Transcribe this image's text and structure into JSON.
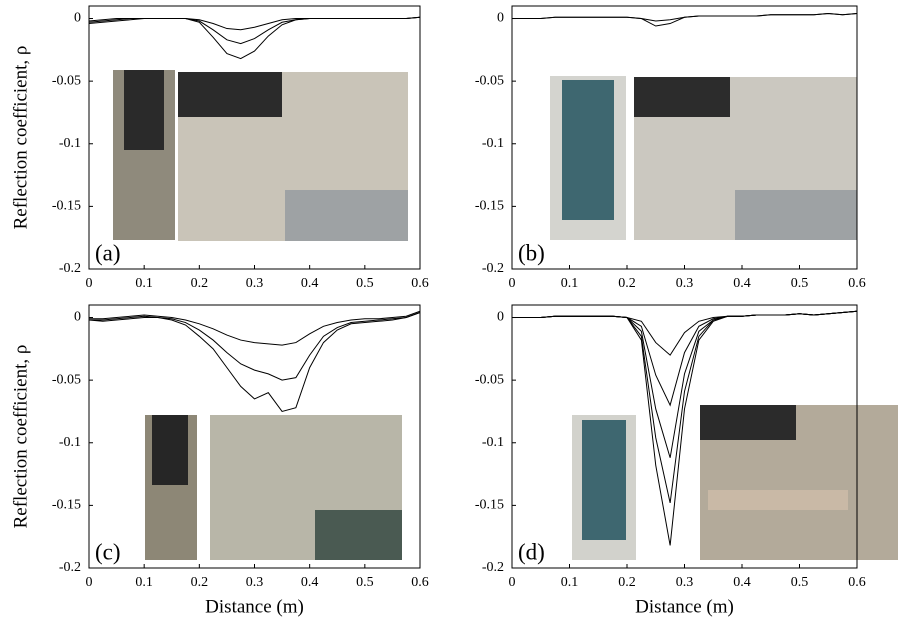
{
  "chart_data": [
    {
      "type": "line",
      "annotation": "(a)",
      "ylabel": "Reflection coefficient, ρ",
      "x": [
        0,
        0.025,
        0.05,
        0.075,
        0.1,
        0.125,
        0.15,
        0.175,
        0.2,
        0.225,
        0.25,
        0.275,
        0.3,
        0.325,
        0.35,
        0.375,
        0.4,
        0.425,
        0.45,
        0.475,
        0.5,
        0.525,
        0.55,
        0.575,
        0.6
      ],
      "series": [
        {
          "color": "#000000",
          "values": [
            -0.004,
            -0.003,
            -0.002,
            -0.001,
            0,
            0,
            0,
            0,
            -0.003,
            -0.015,
            -0.028,
            -0.032,
            -0.026,
            -0.014,
            -0.005,
            -0.001,
            0,
            0,
            0,
            0,
            0,
            0,
            0,
            0,
            0.001
          ]
        },
        {
          "color": "#000000",
          "values": [
            -0.003,
            -0.002,
            -0.001,
            0,
            0,
            0,
            0,
            0,
            -0.002,
            -0.009,
            -0.017,
            -0.02,
            -0.016,
            -0.009,
            -0.003,
            -0.001,
            0,
            0,
            0,
            0,
            0,
            0,
            0,
            0,
            0.001
          ]
        },
        {
          "color": "#000000",
          "values": [
            -0.002,
            -0.001,
            0,
            0,
            0,
            0,
            0,
            0,
            -0.001,
            -0.004,
            -0.008,
            -0.009,
            -0.007,
            -0.004,
            -0.001,
            0,
            0,
            0,
            0,
            0,
            0,
            0,
            0,
            0,
            0.001
          ]
        }
      ],
      "xlim": [
        0,
        0.6
      ],
      "ylim": [
        -0.2,
        0.01
      ],
      "xticks": [
        0,
        0.1,
        0.2,
        0.3,
        0.4,
        0.5,
        0.6
      ],
      "yticks": [
        0,
        -0.05,
        -0.1,
        -0.15,
        -0.2
      ]
    },
    {
      "type": "line",
      "annotation": "(b)",
      "x": [
        0,
        0.025,
        0.05,
        0.075,
        0.1,
        0.125,
        0.15,
        0.175,
        0.2,
        0.225,
        0.25,
        0.275,
        0.3,
        0.325,
        0.35,
        0.375,
        0.4,
        0.425,
        0.45,
        0.475,
        0.5,
        0.525,
        0.55,
        0.575,
        0.6
      ],
      "series": [
        {
          "color": "#000000",
          "values": [
            0,
            0,
            0,
            0.001,
            0.001,
            0.001,
            0.001,
            0.001,
            0.001,
            0,
            -0.006,
            -0.004,
            0.001,
            0.002,
            0.002,
            0.002,
            0.002,
            0.002,
            0.003,
            0.003,
            0.003,
            0.003,
            0.004,
            0.003,
            0.004
          ]
        },
        {
          "color": "#000000",
          "values": [
            0,
            0,
            0,
            0.001,
            0.001,
            0.001,
            0.001,
            0.001,
            0.001,
            0,
            -0.002,
            -0.001,
            0.001,
            0.002,
            0.002,
            0.002,
            0.002,
            0.002,
            0.003,
            0.003,
            0.003,
            0.003,
            0.004,
            0.003,
            0.004
          ]
        }
      ],
      "xlim": [
        0,
        0.6
      ],
      "ylim": [
        -0.2,
        0.01
      ],
      "xticks": [
        0,
        0.1,
        0.2,
        0.3,
        0.4,
        0.5,
        0.6
      ],
      "yticks": [
        0,
        -0.05,
        -0.1,
        -0.15,
        -0.2
      ]
    },
    {
      "type": "line",
      "annotation": "(c)",
      "ylabel": "Reflection coefficient, ρ",
      "xlabel": "Distance (m)",
      "x": [
        0,
        0.025,
        0.05,
        0.075,
        0.1,
        0.125,
        0.15,
        0.175,
        0.2,
        0.225,
        0.25,
        0.275,
        0.3,
        0.325,
        0.35,
        0.375,
        0.4,
        0.425,
        0.45,
        0.475,
        0.5,
        0.525,
        0.55,
        0.575,
        0.6
      ],
      "series": [
        {
          "color": "#000000",
          "values": [
            -0.002,
            -0.003,
            -0.002,
            -0.001,
            0,
            0,
            -0.002,
            -0.006,
            -0.015,
            -0.025,
            -0.04,
            -0.055,
            -0.065,
            -0.06,
            -0.075,
            -0.072,
            -0.04,
            -0.02,
            -0.01,
            -0.005,
            -0.004,
            -0.003,
            -0.002,
            0,
            0.004
          ]
        },
        {
          "color": "#000000",
          "values": [
            -0.002,
            -0.002,
            -0.001,
            0,
            0.001,
            0,
            -0.001,
            -0.004,
            -0.01,
            -0.018,
            -0.028,
            -0.037,
            -0.042,
            -0.045,
            -0.05,
            -0.048,
            -0.03,
            -0.015,
            -0.008,
            -0.004,
            -0.003,
            -0.002,
            -0.001,
            0,
            0.004
          ]
        },
        {
          "color": "#000000",
          "values": [
            -0.001,
            -0.001,
            0,
            0.001,
            0.002,
            0.001,
            0,
            -0.002,
            -0.005,
            -0.009,
            -0.014,
            -0.018,
            -0.02,
            -0.021,
            -0.022,
            -0.02,
            -0.013,
            -0.007,
            -0.004,
            -0.002,
            -0.001,
            -0.001,
            0,
            0.001,
            0.005
          ]
        }
      ],
      "xlim": [
        0,
        0.6
      ],
      "ylim": [
        -0.2,
        0.01
      ],
      "xticks": [
        0,
        0.1,
        0.2,
        0.3,
        0.4,
        0.5,
        0.6
      ],
      "yticks": [
        0,
        -0.05,
        -0.1,
        -0.15,
        -0.2
      ]
    },
    {
      "type": "line",
      "annotation": "(d)",
      "xlabel": "Distance (m)",
      "x": [
        0,
        0.025,
        0.05,
        0.075,
        0.1,
        0.125,
        0.15,
        0.175,
        0.2,
        0.225,
        0.25,
        0.275,
        0.3,
        0.325,
        0.35,
        0.375,
        0.4,
        0.425,
        0.45,
        0.475,
        0.5,
        0.525,
        0.55,
        0.575,
        0.6
      ],
      "series": [
        {
          "color": "#000000",
          "values": [
            0,
            0,
            0,
            0.001,
            0.001,
            0.001,
            0.001,
            0.001,
            0,
            -0.018,
            -0.118,
            -0.182,
            -0.073,
            -0.018,
            -0.003,
            0.001,
            0.001,
            0.002,
            0.002,
            0.002,
            0.003,
            0.002,
            0.003,
            0.004,
            0.005
          ]
        },
        {
          "color": "#000000",
          "values": [
            0,
            0,
            0,
            0.001,
            0.001,
            0.001,
            0.001,
            0.001,
            0,
            -0.015,
            -0.096,
            -0.148,
            -0.059,
            -0.015,
            -0.002,
            0.001,
            0.001,
            0.002,
            0.002,
            0.002,
            0.003,
            0.002,
            0.003,
            0.004,
            0.005
          ]
        },
        {
          "color": "#000000",
          "values": [
            0,
            0,
            0,
            0.001,
            0.001,
            0.001,
            0.001,
            0.001,
            0,
            -0.011,
            -0.073,
            -0.112,
            -0.045,
            -0.011,
            -0.002,
            0.001,
            0.001,
            0.002,
            0.002,
            0.002,
            0.003,
            0.002,
            0.003,
            0.004,
            0.005
          ]
        },
        {
          "color": "#000000",
          "values": [
            0,
            0,
            0,
            0.001,
            0.001,
            0.001,
            0.001,
            0.001,
            0,
            -0.007,
            -0.046,
            -0.07,
            -0.028,
            -0.007,
            -0.001,
            0.001,
            0.001,
            0.002,
            0.002,
            0.002,
            0.003,
            0.002,
            0.003,
            0.004,
            0.005
          ]
        },
        {
          "color": "#000000",
          "values": [
            0,
            0,
            0,
            0.001,
            0.001,
            0.001,
            0.001,
            0.001,
            0,
            -0.003,
            -0.02,
            -0.03,
            -0.012,
            -0.003,
            0,
            0.001,
            0.001,
            0.002,
            0.002,
            0.002,
            0.003,
            0.002,
            0.003,
            0.004,
            0.005
          ]
        }
      ],
      "xlim": [
        0,
        0.6
      ],
      "ylim": [
        -0.2,
        0.01
      ],
      "xticks": [
        0,
        0.1,
        0.2,
        0.3,
        0.4,
        0.5,
        0.6
      ],
      "yticks": [
        0,
        -0.05,
        -0.1,
        -0.15,
        -0.2
      ]
    }
  ]
}
